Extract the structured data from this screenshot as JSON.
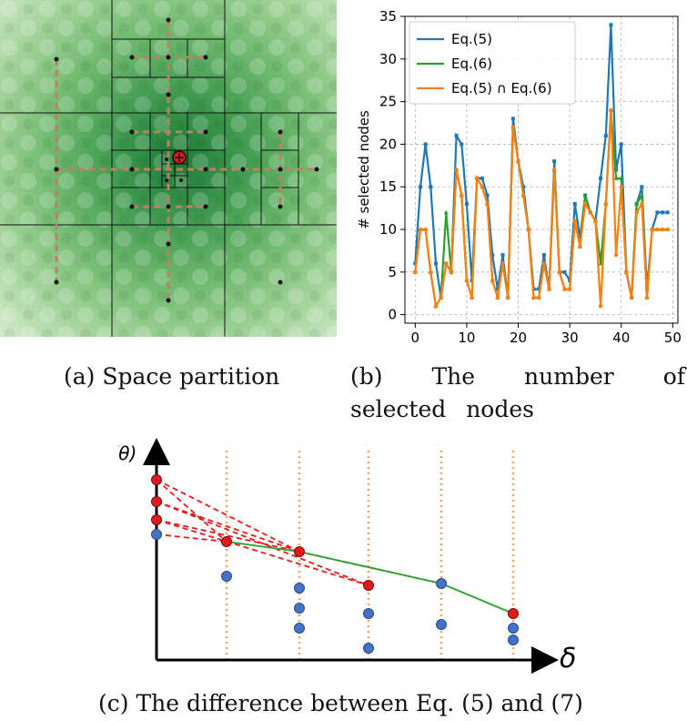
{
  "captions": {
    "a": "(a) Space partition",
    "b": "(b) The number of selected nodes",
    "c": "(c) The difference between Eq. (5) and  (7)"
  },
  "colors": {
    "eq5": "#1f77b4",
    "eq6": "#2ca02c",
    "intersect": "#ff7f0e",
    "red_dash": "#e31a1c",
    "green_line": "#2ca02c",
    "blue_node": "#4472c4",
    "red_node": "#e31a1c",
    "dotted": "#f4a460"
  },
  "diagram_c": {
    "y_axis_label": "ℒ(θ)",
    "x_axis_label": "δ"
  },
  "chart_data": {
    "type": "line",
    "title": "",
    "xlabel": "",
    "ylabel": "# selected nodes",
    "xlim": [
      -2,
      51
    ],
    "ylim": [
      -1,
      35
    ],
    "xticks": [
      0,
      10,
      20,
      30,
      40,
      50
    ],
    "yticks": [
      0,
      5,
      10,
      15,
      20,
      25,
      30,
      35
    ],
    "grid": true,
    "legend_position": "top-left",
    "x": [
      0,
      1,
      2,
      3,
      4,
      5,
      6,
      7,
      8,
      9,
      10,
      11,
      12,
      13,
      14,
      15,
      16,
      17,
      18,
      19,
      20,
      21,
      22,
      23,
      24,
      25,
      26,
      27,
      28,
      29,
      30,
      31,
      32,
      33,
      34,
      35,
      36,
      37,
      38,
      39,
      40,
      41,
      42,
      43,
      44,
      45,
      46,
      47,
      48,
      49
    ],
    "series": [
      {
        "name": "Eq.(5)",
        "marker": "square",
        "values": [
          6,
          15,
          20,
          15,
          6,
          2,
          6,
          5,
          21,
          20,
          13,
          4,
          16,
          16,
          14,
          7,
          3,
          7,
          2,
          23,
          18,
          15,
          10,
          3,
          3,
          7,
          3,
          18,
          5,
          5,
          4,
          13,
          9,
          14,
          12,
          11,
          16,
          21,
          34,
          17,
          20,
          5,
          2,
          13,
          15,
          3,
          10,
          12,
          12,
          12
        ]
      },
      {
        "name": "Eq.(6)",
        "marker": "triangle",
        "values": [
          5,
          10,
          10,
          5,
          1,
          2,
          12,
          5,
          17,
          14,
          4,
          2,
          16,
          15,
          13,
          4,
          2,
          6,
          2,
          22,
          18,
          14,
          10,
          2,
          2,
          6,
          3,
          17,
          5,
          3,
          3,
          11,
          8,
          14,
          12,
          11,
          6,
          13,
          24,
          16,
          16,
          5,
          2,
          13,
          14,
          2,
          10,
          10,
          10,
          10
        ]
      },
      {
        "name": "Eq.(5) ∩ Eq.(6)",
        "marker": "circle",
        "values": [
          5,
          10,
          10,
          5,
          1,
          2,
          6,
          5,
          17,
          14,
          4,
          2,
          16,
          15,
          13,
          4,
          2,
          6,
          2,
          22,
          18,
          14,
          10,
          2,
          2,
          6,
          3,
          17,
          5,
          3,
          3,
          11,
          8,
          13,
          12,
          11,
          1,
          13,
          24,
          7,
          15,
          5,
          2,
          12,
          13,
          2,
          10,
          10,
          10,
          10
        ]
      }
    ]
  }
}
